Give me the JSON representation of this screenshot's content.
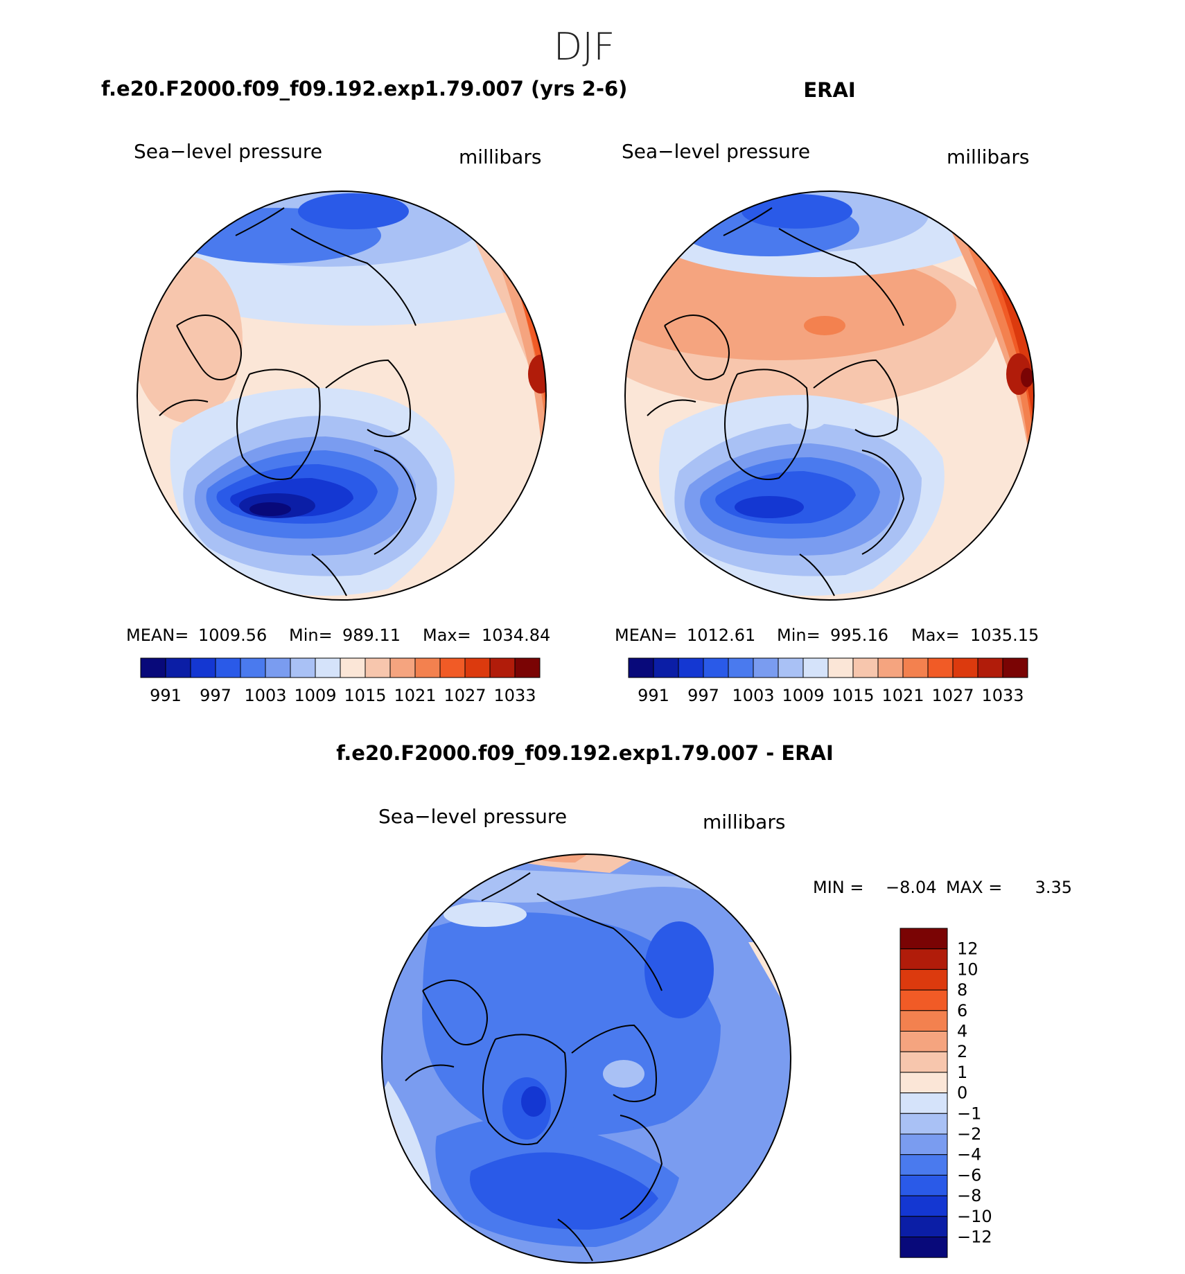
{
  "season": "DJF",
  "panels": {
    "model": {
      "title": "f.e20.F2000.f09_f09.192.exp1.79.007 (yrs 2-6)",
      "variable": "Sea−level pressure",
      "units": "millibars",
      "stats": {
        "mean_label": "MEAN=",
        "mean": "1009.56",
        "min_label": "Min=",
        "min": "989.11",
        "max_label": "Max=",
        "max": "1034.84"
      }
    },
    "obs": {
      "title": "ERAI",
      "variable": "Sea−level pressure",
      "units": "millibars",
      "stats": {
        "mean_label": "MEAN=",
        "mean": "1012.61",
        "min_label": "Min=",
        "min": "995.16",
        "max_label": "Max=",
        "max": "1035.15"
      }
    },
    "diff": {
      "title": "f.e20.F2000.f09_f09.192.exp1.79.007 - ERAI",
      "variable": "Sea−level pressure",
      "units": "millibars",
      "stats": {
        "min_label": "MIN =",
        "min": "−8.04",
        "max_label": "MAX =",
        "max": "3.35"
      }
    }
  },
  "colors": {
    "abs_scale": [
      "#08097a",
      "#0b1ea6",
      "#1437d2",
      "#2a5ae8",
      "#4a7aee",
      "#7a9cf0",
      "#a9c1f5",
      "#d5e3fa",
      "#fbe6d7",
      "#f7c6ad",
      "#f5a47f",
      "#f3814f",
      "#f15b26",
      "#dc3a0e",
      "#b11c0a",
      "#7a0404"
    ],
    "abs_tick_labels": [
      "991",
      "997",
      "1003",
      "1009",
      "1015",
      "1021",
      "1027",
      "1033"
    ],
    "diff_scale": [
      "#7a0404",
      "#b11c0a",
      "#dc3a0e",
      "#f15b26",
      "#f3814f",
      "#f5a47f",
      "#f7c6ad",
      "#fbe6d7",
      "#d5e3fa",
      "#a9c1f5",
      "#7a9cf0",
      "#4a7aee",
      "#2a5ae8",
      "#1437d2",
      "#0b1ea6",
      "#08097a"
    ],
    "diff_tick_labels": [
      "12",
      "10",
      "8",
      "6",
      "4",
      "2",
      "1",
      "0",
      "−1",
      "−2",
      "−4",
      "−6",
      "−8",
      "−10",
      "−12"
    ],
    "coastline": "#000000"
  }
}
